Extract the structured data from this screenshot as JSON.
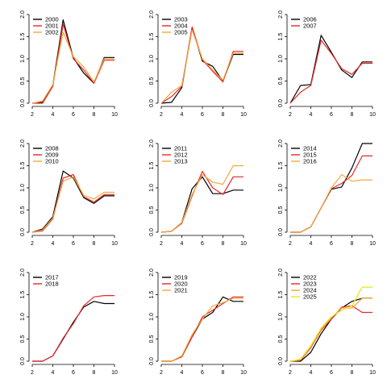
{
  "colors": {
    "black": "#000000",
    "red": "#e8262b",
    "orange": "#f2a93b",
    "yellow": "#e6e617"
  },
  "chart_data": [
    {
      "type": "line",
      "x": [
        2,
        3,
        4,
        5,
        6,
        7,
        8,
        9,
        10
      ],
      "xticks": [
        2,
        4,
        6,
        8,
        10
      ],
      "yticks": [
        "0.0",
        "0.5",
        "1.0",
        "1.5",
        "2.0"
      ],
      "xlim": [
        2,
        10
      ],
      "ylim": [
        0,
        2
      ],
      "legend_position": "top-left",
      "series": [
        {
          "name": "2000",
          "color": "#000000",
          "values": [
            0.0,
            0.02,
            0.4,
            1.88,
            1.02,
            0.68,
            0.45,
            1.03,
            1.03
          ]
        },
        {
          "name": "2001",
          "color": "#e8262b",
          "values": [
            0.0,
            0.0,
            0.38,
            1.78,
            1.0,
            0.75,
            0.45,
            0.97,
            0.97
          ]
        },
        {
          "name": "2002",
          "color": "#f2a93b",
          "values": [
            0.0,
            0.05,
            0.42,
            1.6,
            1.05,
            0.82,
            0.48,
            1.0,
            1.0
          ]
        }
      ]
    },
    {
      "type": "line",
      "x": [
        2,
        3,
        4,
        5,
        6,
        7,
        8,
        9,
        10
      ],
      "xticks": [
        2,
        4,
        6,
        8,
        10
      ],
      "yticks": [
        "0.0",
        "0.5",
        "1.0",
        "1.5",
        "2.0"
      ],
      "xlim": [
        2,
        10
      ],
      "ylim": [
        0,
        2
      ],
      "legend_position": "top-left",
      "series": [
        {
          "name": "2003",
          "color": "#000000",
          "values": [
            0.0,
            0.02,
            0.35,
            1.7,
            0.95,
            0.83,
            0.5,
            1.1,
            1.1
          ]
        },
        {
          "name": "2004",
          "color": "#e8262b",
          "values": [
            0.0,
            0.15,
            0.38,
            1.72,
            0.98,
            0.72,
            0.48,
            1.17,
            1.17
          ]
        },
        {
          "name": "2005",
          "color": "#f2a93b",
          "values": [
            0.0,
            0.25,
            0.4,
            1.65,
            1.0,
            0.75,
            0.52,
            1.13,
            1.13
          ]
        }
      ]
    },
    {
      "type": "line",
      "x": [
        2,
        3,
        4,
        5,
        6,
        7,
        8,
        9,
        10
      ],
      "xticks": [
        2,
        4,
        6,
        8,
        10
      ],
      "yticks": [
        "0.0",
        "0.5",
        "1.0",
        "1.5",
        "2.0"
      ],
      "xlim": [
        2,
        10
      ],
      "ylim": [
        0,
        2
      ],
      "legend_position": "top-left",
      "series": [
        {
          "name": "2006",
          "color": "#000000",
          "values": [
            0.0,
            0.4,
            0.42,
            1.53,
            1.15,
            0.75,
            0.58,
            0.93,
            0.93
          ]
        },
        {
          "name": "2007",
          "color": "#e8262b",
          "values": [
            0.0,
            0.25,
            0.4,
            1.42,
            1.12,
            0.78,
            0.65,
            0.9,
            0.9
          ]
        }
      ]
    },
    {
      "type": "line",
      "x": [
        2,
        3,
        4,
        5,
        6,
        7,
        8,
        9,
        10
      ],
      "xticks": [
        2,
        4,
        6,
        8,
        10
      ],
      "yticks": [
        "0.0",
        "0.5",
        "1.0",
        "1.5",
        "2.0"
      ],
      "xlim": [
        2,
        10
      ],
      "ylim": [
        0,
        2
      ],
      "legend_position": "top-left",
      "series": [
        {
          "name": "2008",
          "color": "#000000",
          "values": [
            0.0,
            0.07,
            0.35,
            1.38,
            1.22,
            0.78,
            0.65,
            0.82,
            0.82
          ]
        },
        {
          "name": "2009",
          "color": "#e8262b",
          "values": [
            0.0,
            0.03,
            0.3,
            1.22,
            1.3,
            0.8,
            0.68,
            0.85,
            0.85
          ]
        },
        {
          "name": "2010",
          "color": "#f2a93b",
          "values": [
            0.0,
            0.05,
            0.32,
            1.15,
            1.25,
            0.83,
            0.75,
            0.9,
            0.9
          ]
        }
      ]
    },
    {
      "type": "line",
      "x": [
        2,
        3,
        4,
        5,
        6,
        7,
        8,
        9,
        10
      ],
      "xticks": [
        2,
        4,
        6,
        8,
        10
      ],
      "yticks": [
        "0.0",
        "0.5",
        "1.0",
        "1.5",
        "2.0"
      ],
      "xlim": [
        2,
        10
      ],
      "ylim": [
        0,
        2
      ],
      "legend_position": "top-left",
      "series": [
        {
          "name": "2011",
          "color": "#000000",
          "values": [
            0.0,
            0.02,
            0.22,
            0.98,
            1.25,
            0.87,
            0.87,
            0.95,
            0.95
          ]
        },
        {
          "name": "2012",
          "color": "#e8262b",
          "values": [
            0.0,
            0.02,
            0.2,
            0.82,
            1.37,
            1.0,
            0.85,
            1.25,
            1.25
          ]
        },
        {
          "name": "2013",
          "color": "#f2a93b",
          "values": [
            0.0,
            0.02,
            0.22,
            0.85,
            1.3,
            1.13,
            1.08,
            1.5,
            1.5
          ]
        }
      ]
    },
    {
      "type": "line",
      "x": [
        2,
        3,
        4,
        5,
        6,
        7,
        8,
        9,
        10
      ],
      "xticks": [
        2,
        4,
        6,
        8,
        10
      ],
      "yticks": [
        "0.0",
        "0.5",
        "1.0",
        "1.5",
        "2.0"
      ],
      "xlim": [
        2,
        10
      ],
      "ylim": [
        0,
        2
      ],
      "legend_position": "top-left",
      "series": [
        {
          "name": "2014",
          "color": "#000000",
          "values": [
            0.0,
            0.0,
            0.12,
            0.55,
            0.97,
            1.02,
            1.45,
            2.0,
            2.0
          ]
        },
        {
          "name": "2015",
          "color": "#e8262b",
          "values": [
            0.0,
            0.0,
            0.12,
            0.55,
            0.98,
            1.1,
            1.28,
            1.72,
            1.72
          ]
        },
        {
          "name": "2016",
          "color": "#f2a93b",
          "values": [
            0.0,
            0.0,
            0.12,
            0.55,
            1.0,
            1.3,
            1.15,
            1.18,
            1.18
          ]
        }
      ]
    },
    {
      "type": "line",
      "x": [
        2,
        3,
        4,
        5,
        6,
        7,
        8,
        9,
        10
      ],
      "xticks": [
        2,
        4,
        6,
        8,
        10
      ],
      "yticks": [
        "0.0",
        "0.5",
        "1.0",
        "1.5",
        "2.0"
      ],
      "xlim": [
        2,
        10
      ],
      "ylim": [
        0,
        2
      ],
      "legend_position": "top-left",
      "series": [
        {
          "name": "2017",
          "color": "#000000",
          "values": [
            0.0,
            0.0,
            0.12,
            0.5,
            0.88,
            1.22,
            1.35,
            1.3,
            1.3
          ]
        },
        {
          "name": "2018",
          "color": "#e8262b",
          "values": [
            0.0,
            0.0,
            0.12,
            0.52,
            0.85,
            1.25,
            1.45,
            1.48,
            1.48
          ]
        }
      ]
    },
    {
      "type": "line",
      "x": [
        2,
        3,
        4,
        5,
        6,
        7,
        8,
        9,
        10
      ],
      "xticks": [
        2,
        4,
        6,
        8,
        10
      ],
      "yticks": [
        "0.0",
        "0.5",
        "1.0",
        "1.5",
        "2.0"
      ],
      "xlim": [
        2,
        10
      ],
      "ylim": [
        0,
        2
      ],
      "legend_position": "top-left",
      "series": [
        {
          "name": "2019",
          "color": "#000000",
          "values": [
            0.0,
            0.0,
            0.1,
            0.55,
            0.95,
            1.1,
            1.45,
            1.35,
            1.35
          ]
        },
        {
          "name": "2020",
          "color": "#e8262b",
          "values": [
            0.0,
            0.0,
            0.1,
            0.55,
            1.0,
            1.15,
            1.3,
            1.45,
            1.45
          ]
        },
        {
          "name": "2021",
          "color": "#f2a93b",
          "values": [
            0.0,
            0.0,
            0.12,
            0.6,
            0.95,
            1.25,
            1.32,
            1.42,
            1.42
          ]
        }
      ]
    },
    {
      "type": "line",
      "x": [
        2,
        3,
        4,
        5,
        6,
        7,
        8,
        9,
        10
      ],
      "xticks": [
        2,
        4,
        6,
        8,
        10
      ],
      "yticks": [
        "0.0",
        "0.5",
        "1.0",
        "1.5",
        "2.0"
      ],
      "xlim": [
        2,
        10
      ],
      "ylim": [
        0,
        2
      ],
      "legend_position": "top-left",
      "series": [
        {
          "name": "2022",
          "color": "#000000",
          "values": [
            0.0,
            0.0,
            0.2,
            0.62,
            0.95,
            1.2,
            1.35,
            1.42,
            1.42
          ]
        },
        {
          "name": "2023",
          "color": "#e8262b",
          "values": [
            0.0,
            0.02,
            0.3,
            0.7,
            0.95,
            1.22,
            1.25,
            1.1,
            1.1
          ]
        },
        {
          "name": "2024",
          "color": "#f2a93b",
          "values": [
            0.0,
            0.03,
            0.32,
            0.72,
            0.98,
            1.2,
            1.2,
            1.42,
            1.42
          ]
        },
        {
          "name": "2025",
          "color": "#e6e617",
          "values": [
            0.0,
            0.05,
            0.35,
            0.75,
            1.0,
            1.15,
            1.25,
            1.67,
            1.67
          ]
        }
      ]
    }
  ]
}
